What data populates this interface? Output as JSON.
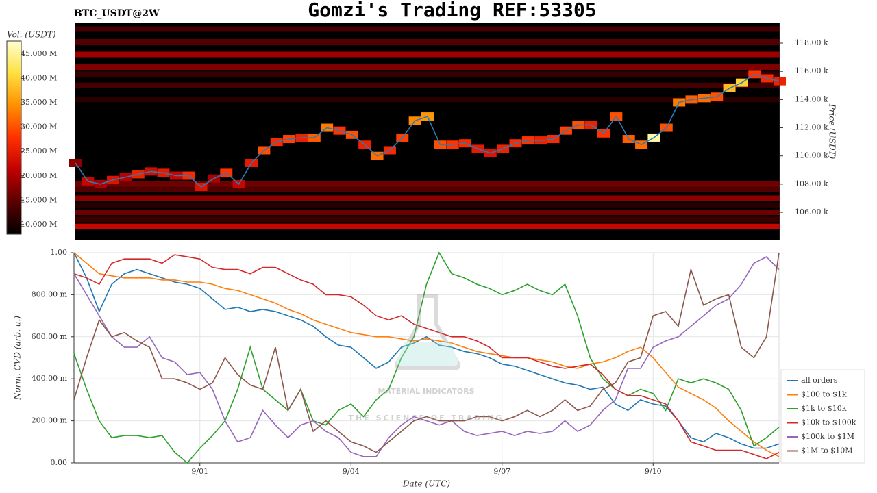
{
  "title": "Gomzi's Trading REF:53305",
  "symbol": "BTC_USDT@2W",
  "watermark": {
    "name": "MATERIAL INDICATORS",
    "tagline": "THE SCIENCE OF TRADING"
  },
  "chart_data": [
    {
      "type": "heatmap",
      "ylabel": "Price (USDT)",
      "ylim": [
        104060,
        119410
      ],
      "yticks": [
        {
          "value": 106000,
          "label": "106.00 k"
        },
        {
          "value": 108000,
          "label": "108.00 k"
        },
        {
          "value": 110000,
          "label": "110.00 k"
        },
        {
          "value": 112000,
          "label": "112.00 k"
        },
        {
          "value": 114000,
          "label": "114.00 k"
        },
        {
          "value": 116000,
          "label": "116.00 k"
        },
        {
          "value": 118000,
          "label": "118.00 k"
        }
      ],
      "bands": [
        {
          "price": 105000,
          "volume": 22000000
        },
        {
          "price": 105500,
          "volume": 12000000
        },
        {
          "price": 106000,
          "volume": 16000000
        },
        {
          "price": 106500,
          "volume": 11000000
        },
        {
          "price": 107000,
          "volume": 18000000
        },
        {
          "price": 107600,
          "volume": 14000000
        },
        {
          "price": 108000,
          "volume": 16000000
        },
        {
          "price": 114000,
          "volume": 11000000
        },
        {
          "price": 115000,
          "volume": 13000000
        },
        {
          "price": 115800,
          "volume": 12000000
        },
        {
          "price": 116300,
          "volume": 17000000
        },
        {
          "price": 117200,
          "volume": 19000000
        },
        {
          "price": 118100,
          "volume": 14000000
        },
        {
          "price": 119000,
          "volume": 13000000
        }
      ],
      "price_line": {
        "color": "#2b7bba",
        "values": [
          109500,
          108200,
          108000,
          108300,
          108500,
          108700,
          108900,
          108800,
          108600,
          108600,
          107800,
          108400,
          108800,
          108000,
          109500,
          110400,
          111000,
          111200,
          111300,
          111300,
          112000,
          111800,
          111500,
          110800,
          110000,
          110400,
          111300,
          112500,
          112800,
          110800,
          110800,
          110900,
          110500,
          110200,
          110500,
          110900,
          111100,
          111100,
          111200,
          111800,
          112200,
          112200,
          111600,
          112800,
          111200,
          110800,
          111300,
          112000,
          113800,
          114000,
          114100,
          114200,
          114800,
          115200,
          115800,
          115500,
          115300
        ]
      },
      "cell_volumes": [
        18000000,
        22000000,
        20000000,
        24000000,
        21000000,
        26000000,
        23000000,
        25000000,
        22000000,
        27000000,
        24000000,
        20000000,
        28000000,
        22000000,
        25000000,
        30000000,
        27000000,
        29000000,
        26000000,
        31000000,
        33000000,
        28000000,
        30000000,
        26000000,
        32000000,
        27000000,
        29000000,
        34000000,
        35000000,
        30000000,
        28000000,
        27000000,
        25000000,
        24000000,
        26000000,
        27000000,
        28000000,
        26000000,
        27000000,
        29000000,
        30000000,
        26000000,
        28000000,
        30000000,
        31000000,
        32000000,
        46000000,
        30000000,
        33000000,
        31000000,
        32000000,
        30000000,
        38000000,
        40000000,
        28000000,
        27000000,
        26000000
      ],
      "colorbar": {
        "label": "Vol. (USDT)",
        "lim": [
          8000000,
          47700000
        ],
        "ticks": [
          {
            "value": 10000000,
            "label": "10.000 M"
          },
          {
            "value": 15000000,
            "label": "15.000 M"
          },
          {
            "value": 20000000,
            "label": "20.000 M"
          },
          {
            "value": 25000000,
            "label": "25.000 M"
          },
          {
            "value": 30000000,
            "label": "30.000 M"
          },
          {
            "value": 35000000,
            "label": "35.000 M"
          },
          {
            "value": 40000000,
            "label": "40.000 M"
          },
          {
            "value": 45000000,
            "label": "45.000 M"
          }
        ],
        "colormap": [
          "#000000",
          "#5a0000",
          "#c00000",
          "#ff3000",
          "#ff9000",
          "#ffe040",
          "#ffffd0"
        ]
      }
    },
    {
      "type": "line",
      "xlabel": "Date (UTC)",
      "ylabel": "Norm. CVD (arb. u.)",
      "categories": [
        null,
        null,
        null,
        null,
        null,
        null,
        null,
        null,
        null,
        null,
        "9/01",
        null,
        null,
        null,
        null,
        null,
        null,
        null,
        null,
        null,
        null,
        null,
        "9/04",
        null,
        null,
        null,
        null,
        null,
        null,
        null,
        null,
        null,
        null,
        null,
        "9/07",
        null,
        null,
        null,
        null,
        null,
        null,
        null,
        null,
        null,
        null,
        null,
        "9/10",
        null,
        null,
        null,
        null,
        null,
        null,
        null,
        null,
        null,
        null
      ],
      "ylim": [
        0,
        1
      ],
      "yticks": [
        {
          "value": 0,
          "label": "0.00"
        },
        {
          "value": 0.2,
          "label": "200.00 m"
        },
        {
          "value": 0.4,
          "label": "400.00 m"
        },
        {
          "value": 0.6,
          "label": "600.00 m"
        },
        {
          "value": 0.8,
          "label": "800.00 m"
        },
        {
          "value": 1,
          "label": "1.00"
        }
      ],
      "grid": true,
      "legend": "right",
      "series": [
        {
          "name": "all orders",
          "color": "#1f77b4",
          "values": [
            1.0,
            0.88,
            0.72,
            0.85,
            0.9,
            0.92,
            0.9,
            0.88,
            0.86,
            0.85,
            0.83,
            0.78,
            0.73,
            0.74,
            0.72,
            0.73,
            0.72,
            0.7,
            0.68,
            0.65,
            0.6,
            0.56,
            0.55,
            0.5,
            0.45,
            0.48,
            0.55,
            0.57,
            0.6,
            0.56,
            0.55,
            0.53,
            0.52,
            0.5,
            0.47,
            0.46,
            0.44,
            0.42,
            0.4,
            0.38,
            0.37,
            0.35,
            0.36,
            0.28,
            0.25,
            0.3,
            0.28,
            0.27,
            0.2,
            0.12,
            0.1,
            0.14,
            0.12,
            0.09,
            0.07,
            0.07,
            0.09
          ]
        },
        {
          "name": "$100 to $1k",
          "color": "#ff7f0e",
          "values": [
            1.0,
            0.95,
            0.9,
            0.89,
            0.88,
            0.88,
            0.88,
            0.87,
            0.87,
            0.86,
            0.86,
            0.85,
            0.83,
            0.82,
            0.8,
            0.78,
            0.76,
            0.73,
            0.71,
            0.68,
            0.66,
            0.64,
            0.62,
            0.61,
            0.6,
            0.6,
            0.59,
            0.58,
            0.59,
            0.58,
            0.57,
            0.55,
            0.53,
            0.52,
            0.51,
            0.5,
            0.5,
            0.49,
            0.48,
            0.46,
            0.45,
            0.47,
            0.48,
            0.5,
            0.53,
            0.55,
            0.5,
            0.43,
            0.36,
            0.33,
            0.3,
            0.26,
            0.2,
            0.15,
            0.1,
            0.06,
            0.03
          ]
        },
        {
          "name": "$1k to $10k",
          "color": "#2ca02c",
          "values": [
            0.52,
            0.35,
            0.2,
            0.12,
            0.13,
            0.13,
            0.12,
            0.13,
            0.05,
            0.0,
            0.07,
            0.13,
            0.2,
            0.35,
            0.55,
            0.35,
            0.3,
            0.25,
            0.35,
            0.2,
            0.18,
            0.25,
            0.28,
            0.22,
            0.3,
            0.35,
            0.5,
            0.6,
            0.85,
            1.0,
            0.9,
            0.88,
            0.85,
            0.83,
            0.8,
            0.82,
            0.85,
            0.82,
            0.8,
            0.85,
            0.7,
            0.5,
            0.4,
            0.35,
            0.32,
            0.35,
            0.33,
            0.25,
            0.4,
            0.38,
            0.4,
            0.38,
            0.35,
            0.25,
            0.08,
            0.12,
            0.17
          ]
        },
        {
          "name": "$10k to $100k",
          "color": "#d62728",
          "values": [
            0.9,
            0.88,
            0.85,
            0.95,
            0.97,
            0.97,
            0.97,
            0.95,
            0.99,
            0.98,
            0.97,
            0.93,
            0.92,
            0.92,
            0.9,
            0.93,
            0.93,
            0.9,
            0.87,
            0.85,
            0.8,
            0.8,
            0.79,
            0.75,
            0.7,
            0.68,
            0.7,
            0.66,
            0.64,
            0.62,
            0.6,
            0.6,
            0.58,
            0.55,
            0.5,
            0.5,
            0.5,
            0.48,
            0.46,
            0.45,
            0.46,
            0.47,
            0.42,
            0.35,
            0.32,
            0.32,
            0.3,
            0.28,
            0.2,
            0.1,
            0.08,
            0.06,
            0.06,
            0.06,
            0.04,
            0.02,
            0.05
          ]
        },
        {
          "name": "$100k to $1M",
          "color": "#9467bd",
          "values": [
            0.9,
            0.8,
            0.7,
            0.6,
            0.55,
            0.55,
            0.6,
            0.5,
            0.48,
            0.42,
            0.43,
            0.35,
            0.2,
            0.1,
            0.12,
            0.25,
            0.18,
            0.12,
            0.18,
            0.2,
            0.15,
            0.12,
            0.05,
            0.03,
            0.03,
            0.12,
            0.18,
            0.22,
            0.2,
            0.18,
            0.2,
            0.15,
            0.13,
            0.14,
            0.15,
            0.13,
            0.15,
            0.14,
            0.15,
            0.2,
            0.15,
            0.18,
            0.25,
            0.3,
            0.45,
            0.45,
            0.55,
            0.58,
            0.6,
            0.65,
            0.7,
            0.75,
            0.78,
            0.85,
            0.95,
            0.98,
            0.92
          ]
        },
        {
          "name": "$1M to $10M",
          "color": "#8c564b",
          "values": [
            0.3,
            0.5,
            0.68,
            0.6,
            0.62,
            0.58,
            0.55,
            0.4,
            0.4,
            0.38,
            0.35,
            0.38,
            0.5,
            0.42,
            0.37,
            0.35,
            0.55,
            0.25,
            0.35,
            0.15,
            0.2,
            0.15,
            0.1,
            0.08,
            0.05,
            0.1,
            0.15,
            0.2,
            0.22,
            0.2,
            0.2,
            0.2,
            0.22,
            0.22,
            0.2,
            0.22,
            0.25,
            0.22,
            0.25,
            0.3,
            0.25,
            0.27,
            0.35,
            0.38,
            0.48,
            0.5,
            0.7,
            0.72,
            0.65,
            0.92,
            0.75,
            0.78,
            0.8,
            0.55,
            0.5,
            0.6,
            1.0
          ]
        }
      ]
    }
  ]
}
